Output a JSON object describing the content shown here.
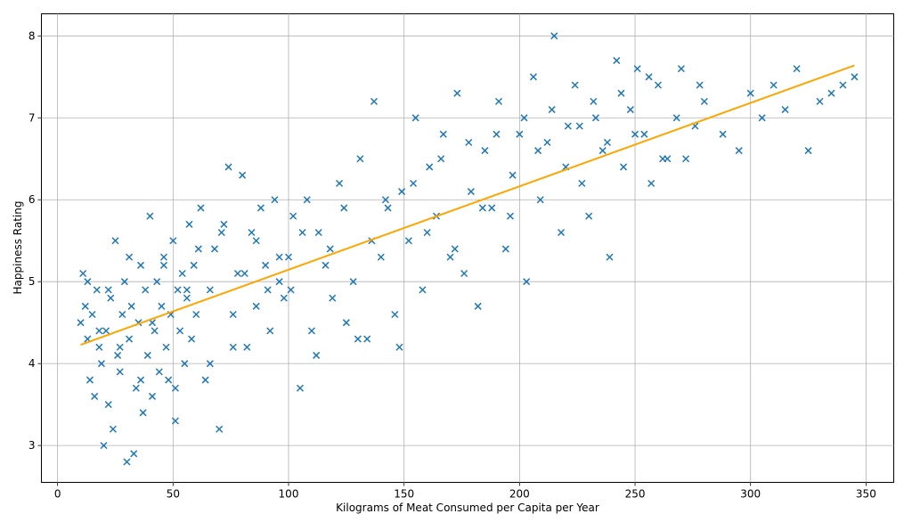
{
  "chart_data": {
    "type": "scatter",
    "title": "",
    "xlabel": "Kilograms of Meat Consumed per Capita per Year",
    "ylabel": "Happiness Rating",
    "xlim": [
      -7,
      362
    ],
    "ylim": [
      2.55,
      8.27
    ],
    "xticks": [
      0,
      50,
      100,
      150,
      200,
      250,
      300,
      350
    ],
    "yticks": [
      3,
      4,
      5,
      6,
      7,
      8
    ],
    "grid": true,
    "marker": "x",
    "colors": {
      "points": "#1f77b4",
      "trend": "#ffa500",
      "grid": "#b0b0b0"
    },
    "points": {
      "x": [
        10,
        11,
        12,
        13,
        14,
        15,
        16,
        17,
        18,
        19,
        20,
        21,
        22,
        23,
        24,
        25,
        26,
        27,
        28,
        29,
        30,
        31,
        32,
        33,
        34,
        35,
        36,
        37,
        38,
        39,
        40,
        41,
        42,
        43,
        44,
        45,
        46,
        47,
        48,
        49,
        50,
        51,
        52,
        53,
        54,
        55,
        56,
        57,
        58,
        59,
        60,
        62,
        64,
        66,
        68,
        70,
        72,
        74,
        76,
        78,
        80,
        82,
        84,
        86,
        88,
        90,
        92,
        94,
        96,
        98,
        100,
        102,
        105,
        108,
        110,
        113,
        116,
        119,
        122,
        125,
        128,
        131,
        134,
        137,
        140,
        143,
        146,
        149,
        152,
        155,
        158,
        161,
        164,
        167,
        170,
        173,
        176,
        179,
        182,
        185,
        188,
        191,
        194,
        197,
        200,
        203,
        206,
        209,
        212,
        215,
        218,
        221,
        224,
        227,
        230,
        233,
        236,
        239,
        242,
        245,
        248,
        251,
        254,
        257,
        260,
        264,
        268,
        272,
        276,
        280,
        288,
        295,
        300,
        305,
        310,
        315,
        320,
        325,
        330,
        335,
        340,
        345,
        13,
        18,
        22,
        27,
        31,
        36,
        41,
        46,
        51,
        56,
        61,
        66,
        71,
        76,
        81,
        86,
        91,
        96,
        101,
        106,
        112,
        118,
        124,
        130,
        136,
        142,
        148,
        154,
        160,
        166,
        172,
        178,
        184,
        190,
        196,
        202,
        208,
        214,
        220,
        226,
        232,
        238,
        244,
        250,
        256,
        262,
        270,
        278
      ],
      "y": [
        4.5,
        5.1,
        4.7,
        4.3,
        3.8,
        4.6,
        3.6,
        4.9,
        4.2,
        4.0,
        3.0,
        4.4,
        3.5,
        4.8,
        3.2,
        5.5,
        4.1,
        3.9,
        4.6,
        5.0,
        2.8,
        4.3,
        4.7,
        2.9,
        3.7,
        4.5,
        5.2,
        3.4,
        4.9,
        4.1,
        5.8,
        3.6,
        4.4,
        5.0,
        3.9,
        4.7,
        5.3,
        4.2,
        3.8,
        4.6,
        5.5,
        3.3,
        4.9,
        4.4,
        5.1,
        4.0,
        4.8,
        5.7,
        4.3,
        5.2,
        4.6,
        5.9,
        3.8,
        4.9,
        5.4,
        3.2,
        5.7,
        6.4,
        4.6,
        5.1,
        6.3,
        4.2,
        5.6,
        4.7,
        5.9,
        5.2,
        4.4,
        6.0,
        5.0,
        4.8,
        5.3,
        5.8,
        3.7,
        6.0,
        4.4,
        5.6,
        5.2,
        4.8,
        6.2,
        4.5,
        5.0,
        6.5,
        4.3,
        7.2,
        5.3,
        5.9,
        4.6,
        6.1,
        5.5,
        7.0,
        4.9,
        6.4,
        5.8,
        6.8,
        5.3,
        7.3,
        5.1,
        6.1,
        4.7,
        6.6,
        5.9,
        7.2,
        5.4,
        6.3,
        6.8,
        5.0,
        7.5,
        6.0,
        6.7,
        8.0,
        5.6,
        6.9,
        7.4,
        6.2,
        5.8,
        7.0,
        6.6,
        5.3,
        7.7,
        6.4,
        7.1,
        7.6,
        6.8,
        6.2,
        7.4,
        6.5,
        7.0,
        6.5,
        6.9,
        7.2,
        6.8,
        6.6,
        7.3,
        7.0,
        7.4,
        7.1,
        7.6,
        6.6,
        7.2,
        7.3,
        7.4,
        7.5,
        5.0,
        4.4,
        4.9,
        4.2,
        5.3,
        3.8,
        4.5,
        5.2,
        3.7,
        4.9,
        5.4,
        4.0,
        5.6,
        4.2,
        5.1,
        5.5,
        4.9,
        5.3,
        4.9,
        5.6,
        4.1,
        5.4,
        5.9,
        4.3,
        5.5,
        6.0,
        4.2,
        6.2,
        5.6,
        6.5,
        5.4,
        6.7,
        5.9,
        6.8,
        5.8,
        7.0,
        6.6,
        7.1,
        6.4,
        6.9,
        7.2,
        6.7,
        7.3,
        6.8,
        7.5,
        6.5,
        7.6,
        7.4
      ],
      "n_note": ""
    },
    "trendline": {
      "x": [
        10,
        345
      ],
      "y": [
        4.23,
        7.64
      ]
    }
  }
}
